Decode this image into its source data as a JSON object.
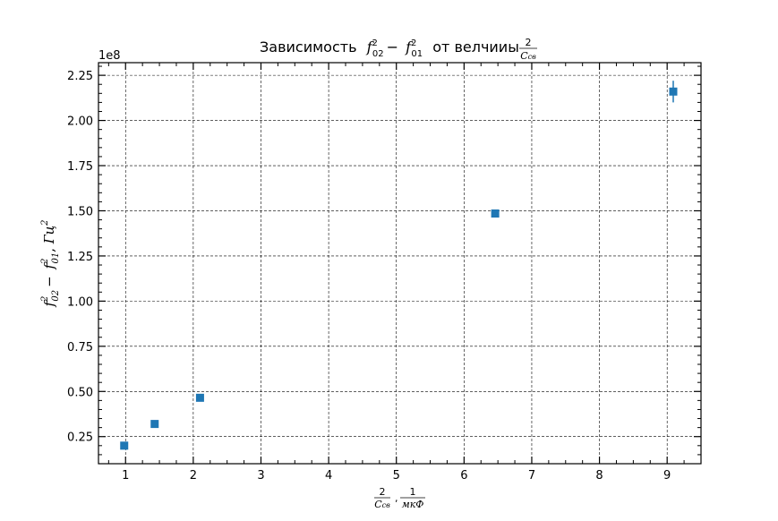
{
  "chart_data": {
    "type": "scatter",
    "title_prefix": "Зависимость",
    "title_middle": "от велчииы",
    "title_fraction": {
      "numerator": "2",
      "denominator": "C_св"
    },
    "ylabel": "f_02^2 − f_01^2, Гц^2",
    "xlabel": "2/C_св, 1/мкФ",
    "xlim": [
      0.6,
      9.5
    ],
    "ylim": [
      0.1,
      2.32
    ],
    "y_offset_label": "1e8",
    "x_ticks": [
      1,
      2,
      3,
      4,
      5,
      6,
      7,
      8,
      9
    ],
    "y_ticks": [
      0.25,
      0.5,
      0.75,
      1.0,
      1.25,
      1.5,
      1.75,
      2.0,
      2.25
    ],
    "y_tick_labels": [
      "0.25",
      "0.50",
      "0.75",
      "1.00",
      "1.25",
      "1.50",
      "1.75",
      "2.00",
      "2.25"
    ],
    "x_tick_labels": [
      "1",
      "2",
      "3",
      "4",
      "5",
      "6",
      "7",
      "8",
      "9"
    ],
    "grid": true,
    "marker": "square",
    "series": [
      {
        "color": "#1f77b4",
        "x": [
          0.98,
          1.43,
          2.1,
          6.46,
          9.09
        ],
        "y": [
          0.2,
          0.32,
          0.465,
          1.485,
          2.16
        ],
        "y_err": [
          0.0,
          0.0,
          0.0,
          0.0,
          0.06
        ]
      }
    ]
  }
}
